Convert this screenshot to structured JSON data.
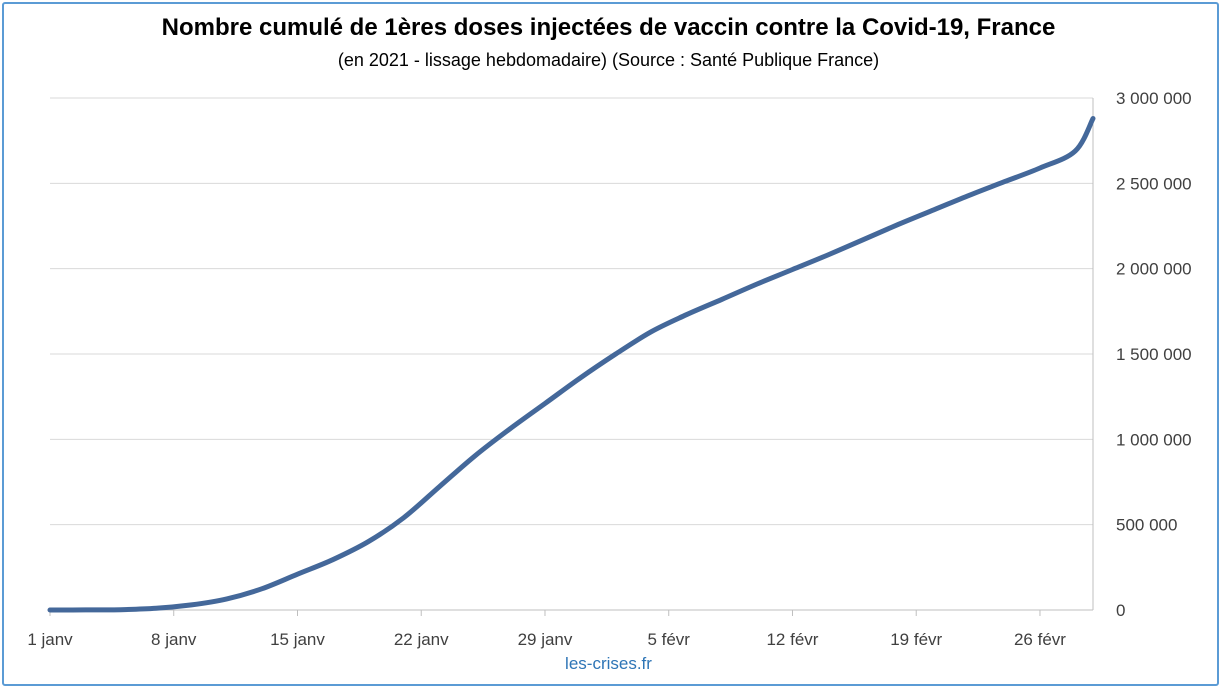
{
  "chart_data": {
    "type": "line",
    "title": "Nombre cumulé de 1ères doses injectées de vaccin contre la Covid-19, France",
    "subtitle": "(en 2021 - lissage hebdomadaire) (Source : Santé Publique France)",
    "xlabel": "",
    "ylabel": "",
    "x_tick_labels": [
      "1 janv",
      "8 janv",
      "15 janv",
      "22 janv",
      "29 janv",
      "5 févr",
      "12 févr",
      "19 févr",
      "26 févr"
    ],
    "y_tick_labels": [
      "0",
      "500 000",
      "1 000 000",
      "1 500 000",
      "2 000 000",
      "2 500 000",
      "3 000 000"
    ],
    "y_ticks": [
      0,
      500000,
      1000000,
      1500000,
      2000000,
      2500000,
      3000000
    ],
    "ylim": [
      0,
      3000000
    ],
    "xlim": [
      "2021-01-01",
      "2021-03-01"
    ],
    "grid": true,
    "y_axis_position": "right",
    "series": [
      {
        "color": "#44689a",
        "x": [
          "2021-01-01",
          "2021-01-03",
          "2021-01-05",
          "2021-01-07",
          "2021-01-09",
          "2021-01-11",
          "2021-01-13",
          "2021-01-15",
          "2021-01-17",
          "2021-01-19",
          "2021-01-21",
          "2021-01-23",
          "2021-01-25",
          "2021-01-27",
          "2021-01-29",
          "2021-01-31",
          "2021-02-02",
          "2021-02-04",
          "2021-02-06",
          "2021-02-08",
          "2021-02-10",
          "2021-02-12",
          "2021-02-14",
          "2021-02-16",
          "2021-02-18",
          "2021-02-20",
          "2021-02-22",
          "2021-02-24",
          "2021-02-26",
          "2021-02-28",
          "2021-03-01"
        ],
        "values": [
          0,
          500,
          2000,
          10000,
          30000,
          65000,
          125000,
          210000,
          295000,
          400000,
          540000,
          720000,
          900000,
          1060000,
          1210000,
          1360000,
          1500000,
          1630000,
          1730000,
          1820000,
          1910000,
          1995000,
          2080000,
          2170000,
          2260000,
          2345000,
          2430000,
          2510000,
          2590000,
          2690000,
          2880000
        ]
      }
    ]
  },
  "watermark": {
    "text": "les-crises.fr",
    "color": "#2e75b6"
  }
}
